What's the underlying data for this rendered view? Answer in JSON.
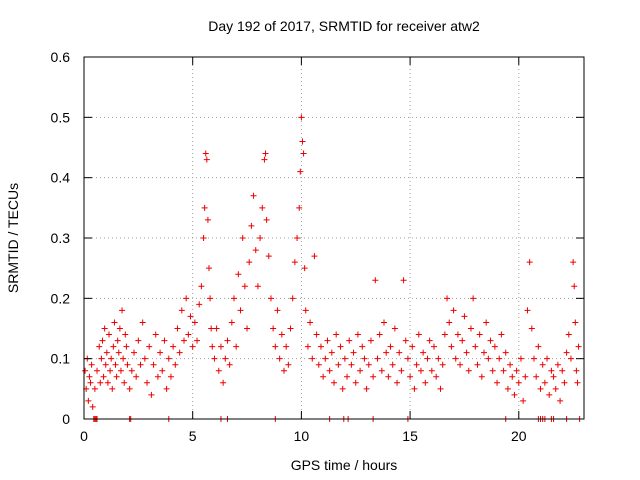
{
  "chart_data": {
    "type": "scatter",
    "title": "Day 192 of 2017, SRMTID for receiver atw2",
    "xlabel": "GPS time / hours",
    "ylabel": "SRMTID / TECUs",
    "xlim": [
      0,
      23
    ],
    "ylim": [
      0,
      0.6
    ],
    "xticks": [
      0,
      5,
      10,
      15,
      20
    ],
    "xtick_labels": [
      "0",
      "5",
      "10",
      "15",
      "20"
    ],
    "yticks": [
      0,
      0.1,
      0.2,
      0.3,
      0.4,
      0.5,
      0.6
    ],
    "ytick_labels": [
      "0",
      "0.1",
      "0.2",
      "0.3",
      "0.4",
      "0.5",
      "0.6"
    ],
    "grid": true,
    "marker": "+",
    "color": "#ee0000",
    "series": [
      {
        "name": "SRMTID",
        "points": [
          [
            0.05,
            0.08
          ],
          [
            0.1,
            0.05
          ],
          [
            0.15,
            0.1
          ],
          [
            0.2,
            0.03
          ],
          [
            0.25,
            0.07
          ],
          [
            0.3,
            0.06
          ],
          [
            0.35,
            0.09
          ],
          [
            0.4,
            0.02
          ],
          [
            0.5,
            0.05
          ],
          [
            0.6,
            0.08
          ],
          [
            0.7,
            0.12
          ],
          [
            0.75,
            0.06
          ],
          [
            0.8,
            0.1
          ],
          [
            0.85,
            0.13
          ],
          [
            0.9,
            0.07
          ],
          [
            0.95,
            0.15
          ],
          [
            1.0,
            0.09
          ],
          [
            1.05,
            0.11
          ],
          [
            1.1,
            0.06
          ],
          [
            1.15,
            0.14
          ],
          [
            1.2,
            0.08
          ],
          [
            1.25,
            0.1
          ],
          [
            1.3,
            0.05
          ],
          [
            1.35,
            0.12
          ],
          [
            1.4,
            0.16
          ],
          [
            1.45,
            0.09
          ],
          [
            1.5,
            0.07
          ],
          [
            1.55,
            0.13
          ],
          [
            1.6,
            0.11
          ],
          [
            1.65,
            0.15
          ],
          [
            1.7,
            0.08
          ],
          [
            1.75,
            0.18
          ],
          [
            1.8,
            0.1
          ],
          [
            1.85,
            0.06
          ],
          [
            1.9,
            0.14
          ],
          [
            1.95,
            0.12
          ],
          [
            2.0,
            0.09
          ],
          [
            2.1,
            0.05
          ],
          [
            2.2,
            0.08
          ],
          [
            2.3,
            0.11
          ],
          [
            2.4,
            0.07
          ],
          [
            2.5,
            0.13
          ],
          [
            2.6,
            0.09
          ],
          [
            2.7,
            0.16
          ],
          [
            2.8,
            0.1
          ],
          [
            2.9,
            0.06
          ],
          [
            3.0,
            0.12
          ],
          [
            3.1,
            0.04
          ],
          [
            3.2,
            0.09
          ],
          [
            3.3,
            0.14
          ],
          [
            3.4,
            0.07
          ],
          [
            3.5,
            0.11
          ],
          [
            3.6,
            0.08
          ],
          [
            3.7,
            0.13
          ],
          [
            3.8,
            0.05
          ],
          [
            3.9,
            0.1
          ],
          [
            4.0,
            0.07
          ],
          [
            4.1,
            0.12
          ],
          [
            4.2,
            0.09
          ],
          [
            4.3,
            0.15
          ],
          [
            4.4,
            0.11
          ],
          [
            4.5,
            0.18
          ],
          [
            4.6,
            0.13
          ],
          [
            4.7,
            0.2
          ],
          [
            4.8,
            0.14
          ],
          [
            4.9,
            0.17
          ],
          [
            5.0,
            0.12
          ],
          [
            5.1,
            0.16
          ],
          [
            5.2,
            0.13
          ],
          [
            5.3,
            0.19
          ],
          [
            5.4,
            0.22
          ],
          [
            5.5,
            0.3
          ],
          [
            5.55,
            0.35
          ],
          [
            5.6,
            0.44
          ],
          [
            5.65,
            0.43
          ],
          [
            5.7,
            0.33
          ],
          [
            5.75,
            0.25
          ],
          [
            5.8,
            0.2
          ],
          [
            5.85,
            0.15
          ],
          [
            5.9,
            0.12
          ],
          [
            6.0,
            0.1
          ],
          [
            6.1,
            0.15
          ],
          [
            6.2,
            0.08
          ],
          [
            6.3,
            0.12
          ],
          [
            6.4,
            0.06
          ],
          [
            6.5,
            0.1
          ],
          [
            6.6,
            0.13
          ],
          [
            6.7,
            0.09
          ],
          [
            6.8,
            0.16
          ],
          [
            6.9,
            0.2
          ],
          [
            7.0,
            0.12
          ],
          [
            7.1,
            0.24
          ],
          [
            7.2,
            0.18
          ],
          [
            7.3,
            0.3
          ],
          [
            7.4,
            0.22
          ],
          [
            7.5,
            0.15
          ],
          [
            7.6,
            0.26
          ],
          [
            7.7,
            0.32
          ],
          [
            7.8,
            0.37
          ],
          [
            7.9,
            0.28
          ],
          [
            8.0,
            0.22
          ],
          [
            8.1,
            0.3
          ],
          [
            8.2,
            0.35
          ],
          [
            8.3,
            0.43
          ],
          [
            8.35,
            0.44
          ],
          [
            8.4,
            0.33
          ],
          [
            8.5,
            0.27
          ],
          [
            8.6,
            0.2
          ],
          [
            8.7,
            0.15
          ],
          [
            8.8,
            0.12
          ],
          [
            8.9,
            0.18
          ],
          [
            9.0,
            0.1
          ],
          [
            9.1,
            0.14
          ],
          [
            9.2,
            0.08
          ],
          [
            9.3,
            0.12
          ],
          [
            9.4,
            0.09
          ],
          [
            9.5,
            0.15
          ],
          [
            9.6,
            0.2
          ],
          [
            9.7,
            0.26
          ],
          [
            9.8,
            0.3
          ],
          [
            9.9,
            0.35
          ],
          [
            9.95,
            0.41
          ],
          [
            10.0,
            0.5
          ],
          [
            10.05,
            0.46
          ],
          [
            10.1,
            0.44
          ],
          [
            10.15,
            0.25
          ],
          [
            10.2,
            0.18
          ],
          [
            10.3,
            0.12
          ],
          [
            10.4,
            0.16
          ],
          [
            10.5,
            0.1
          ],
          [
            10.6,
            0.27
          ],
          [
            10.7,
            0.14
          ],
          [
            10.8,
            0.09
          ],
          [
            10.9,
            0.12
          ],
          [
            11.0,
            0.07
          ],
          [
            11.1,
            0.1
          ],
          [
            11.2,
            0.13
          ],
          [
            11.3,
            0.08
          ],
          [
            11.4,
            0.11
          ],
          [
            11.5,
            0.06
          ],
          [
            11.6,
            0.14
          ],
          [
            11.7,
            0.09
          ],
          [
            11.8,
            0.12
          ],
          [
            11.9,
            0.05
          ],
          [
            12.0,
            0.1
          ],
          [
            12.1,
            0.07
          ],
          [
            12.2,
            0.13
          ],
          [
            12.3,
            0.09
          ],
          [
            12.4,
            0.11
          ],
          [
            12.5,
            0.06
          ],
          [
            12.6,
            0.14
          ],
          [
            12.7,
            0.08
          ],
          [
            12.8,
            0.12
          ],
          [
            12.9,
            0.1
          ],
          [
            13.0,
            0.05
          ],
          [
            13.1,
            0.09
          ],
          [
            13.2,
            0.13
          ],
          [
            13.3,
            0.07
          ],
          [
            13.4,
            0.23
          ],
          [
            13.5,
            0.1
          ],
          [
            13.6,
            0.14
          ],
          [
            13.7,
            0.08
          ],
          [
            13.8,
            0.16
          ],
          [
            13.9,
            0.11
          ],
          [
            14.0,
            0.07
          ],
          [
            14.1,
            0.12
          ],
          [
            14.2,
            0.09
          ],
          [
            14.3,
            0.15
          ],
          [
            14.4,
            0.06
          ],
          [
            14.5,
            0.11
          ],
          [
            14.6,
            0.08
          ],
          [
            14.7,
            0.23
          ],
          [
            14.8,
            0.13
          ],
          [
            14.9,
            0.1
          ],
          [
            15.0,
            0.07
          ],
          [
            15.1,
            0.12
          ],
          [
            15.2,
            0.05
          ],
          [
            15.3,
            0.09
          ],
          [
            15.4,
            0.14
          ],
          [
            15.5,
            0.08
          ],
          [
            15.6,
            0.11
          ],
          [
            15.7,
            0.06
          ],
          [
            15.8,
            0.1
          ],
          [
            15.9,
            0.13
          ],
          [
            16.0,
            0.08
          ],
          [
            16.1,
            0.12
          ],
          [
            16.2,
            0.07
          ],
          [
            16.3,
            0.1
          ],
          [
            16.4,
            0.05
          ],
          [
            16.5,
            0.09
          ],
          [
            16.6,
            0.14
          ],
          [
            16.7,
            0.2
          ],
          [
            16.8,
            0.16
          ],
          [
            16.9,
            0.12
          ],
          [
            17.0,
            0.18
          ],
          [
            17.1,
            0.1
          ],
          [
            17.2,
            0.14
          ],
          [
            17.3,
            0.09
          ],
          [
            17.4,
            0.13
          ],
          [
            17.5,
            0.17
          ],
          [
            17.6,
            0.11
          ],
          [
            17.7,
            0.08
          ],
          [
            17.8,
            0.15
          ],
          [
            17.9,
            0.2
          ],
          [
            18.0,
            0.12
          ],
          [
            18.1,
            0.09
          ],
          [
            18.2,
            0.14
          ],
          [
            18.3,
            0.07
          ],
          [
            18.4,
            0.11
          ],
          [
            18.5,
            0.16
          ],
          [
            18.6,
            0.1
          ],
          [
            18.7,
            0.13
          ],
          [
            18.8,
            0.08
          ],
          [
            18.9,
            0.12
          ],
          [
            19.0,
            0.06
          ],
          [
            19.1,
            0.1
          ],
          [
            19.2,
            0.14
          ],
          [
            19.3,
            0.08
          ],
          [
            19.4,
            0.11
          ],
          [
            19.5,
            0.05
          ],
          [
            19.6,
            0.09
          ],
          [
            19.7,
            0.07
          ],
          [
            19.8,
            0.04
          ],
          [
            19.9,
            0.08
          ],
          [
            20.0,
            0.06
          ],
          [
            20.1,
            0.1
          ],
          [
            20.2,
            0.03
          ],
          [
            20.3,
            0.07
          ],
          [
            20.4,
            0.18
          ],
          [
            20.5,
            0.26
          ],
          [
            20.6,
            0.15
          ],
          [
            20.7,
            0.1
          ],
          [
            20.8,
            0.07
          ],
          [
            20.9,
            0.12
          ],
          [
            21.0,
            0.05
          ],
          [
            21.1,
            0.09
          ],
          [
            21.2,
            0.06
          ],
          [
            21.3,
            0.1
          ],
          [
            21.4,
            0.04
          ],
          [
            21.5,
            0.08
          ],
          [
            21.6,
            0.07
          ],
          [
            21.7,
            0.05
          ],
          [
            21.8,
            0.09
          ],
          [
            21.9,
            0.03
          ],
          [
            22.0,
            0.08
          ],
          [
            22.1,
            0.06
          ],
          [
            22.2,
            0.11
          ],
          [
            22.3,
            0.14
          ],
          [
            22.4,
            0.1
          ],
          [
            22.5,
            0.26
          ],
          [
            22.55,
            0.22
          ],
          [
            22.6,
            0.16
          ],
          [
            22.65,
            0.08
          ],
          [
            22.7,
            0.06
          ],
          [
            22.75,
            0.12
          ],
          [
            0.45,
            0.0
          ],
          [
            0.5,
            0.0
          ],
          [
            0.55,
            0.0
          ],
          [
            0.6,
            0.0
          ],
          [
            2.1,
            0.0
          ],
          [
            2.15,
            0.0
          ],
          [
            3.9,
            0.0
          ],
          [
            6.3,
            0.0
          ],
          [
            6.6,
            0.0
          ],
          [
            8.8,
            0.0
          ],
          [
            11.3,
            0.0
          ],
          [
            11.95,
            0.0
          ],
          [
            12.15,
            0.0
          ],
          [
            13.3,
            0.0
          ],
          [
            14.9,
            0.0
          ],
          [
            19.4,
            0.0
          ],
          [
            20.9,
            0.0
          ],
          [
            21.0,
            0.0
          ],
          [
            21.1,
            0.0
          ],
          [
            21.2,
            0.0
          ],
          [
            21.5,
            0.0
          ],
          [
            21.6,
            0.0
          ],
          [
            22.2,
            0.0
          ],
          [
            22.8,
            0.0
          ]
        ]
      }
    ]
  }
}
